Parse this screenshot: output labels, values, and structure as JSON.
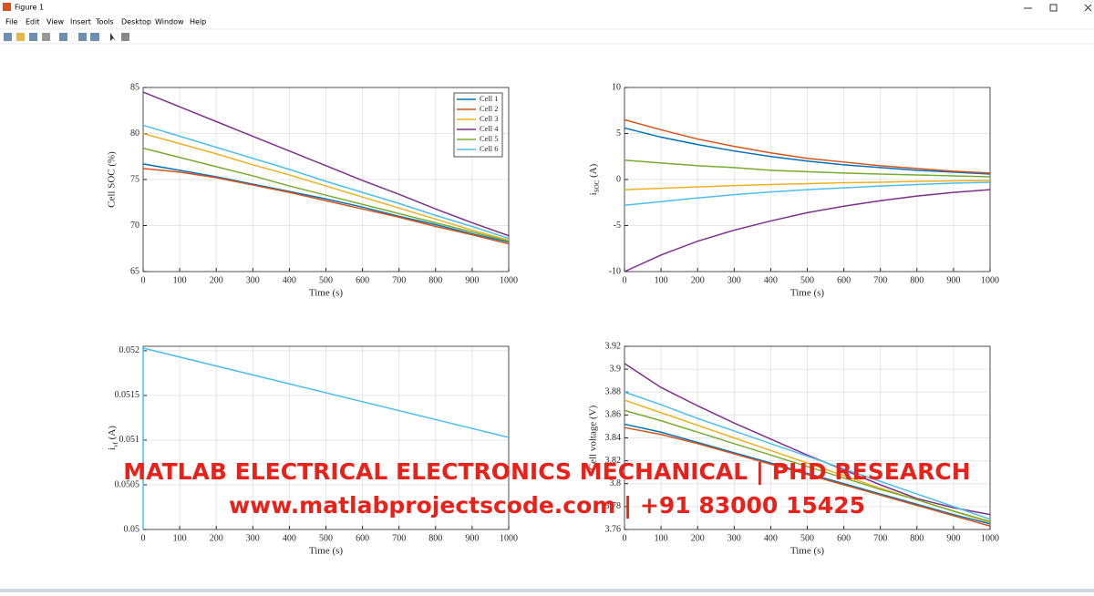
{
  "window": {
    "title": "Figure 1",
    "menu": [
      "File",
      "Edit",
      "View",
      "Insert",
      "Tools",
      "Desktop",
      "Window",
      "Help"
    ]
  },
  "chart_data": [
    {
      "type": "line",
      "x": [
        0,
        100,
        200,
        300,
        400,
        500,
        600,
        700,
        800,
        900,
        1000
      ],
      "xlim": [
        0,
        1000
      ],
      "xticks": [
        0,
        100,
        200,
        300,
        400,
        500,
        600,
        700,
        800,
        900,
        1000
      ],
      "ylim": [
        65,
        85
      ],
      "yticks": [
        65,
        70,
        75,
        80,
        85
      ],
      "xlabel": "Time (s)",
      "ylabel": "Cell SOC (%)",
      "grid": true,
      "legend": "top-right",
      "series": [
        {
          "name": "Cell 1",
          "color": "#0072BD",
          "values": [
            76.7,
            76.0,
            75.3,
            74.5,
            73.7,
            72.9,
            72.0,
            71.0,
            70.1,
            69.1,
            68.2
          ]
        },
        {
          "name": "Cell 2",
          "color": "#D95319",
          "values": [
            76.2,
            75.8,
            75.2,
            74.4,
            73.6,
            72.7,
            71.8,
            70.9,
            69.9,
            69.0,
            68.0
          ]
        },
        {
          "name": "Cell 3",
          "color": "#EDB120",
          "values": [
            80.0,
            78.9,
            77.8,
            76.6,
            75.5,
            74.3,
            73.1,
            71.9,
            70.7,
            69.5,
            68.4
          ]
        },
        {
          "name": "Cell 4",
          "color": "#7E2F8E",
          "values": [
            84.5,
            82.9,
            81.3,
            79.7,
            78.1,
            76.5,
            74.9,
            73.4,
            71.8,
            70.3,
            68.9
          ]
        },
        {
          "name": "Cell 5",
          "color": "#77AC30",
          "values": [
            78.4,
            77.4,
            76.4,
            75.4,
            74.3,
            73.3,
            72.3,
            71.3,
            70.3,
            69.3,
            68.3
          ]
        },
        {
          "name": "Cell 6",
          "color": "#4DBEEE",
          "values": [
            80.9,
            79.7,
            78.5,
            77.3,
            76.1,
            74.8,
            73.6,
            72.4,
            71.1,
            69.9,
            68.6
          ]
        }
      ]
    },
    {
      "type": "line",
      "x": [
        0,
        100,
        200,
        300,
        400,
        500,
        600,
        700,
        800,
        900,
        1000
      ],
      "xlim": [
        0,
        1000
      ],
      "xticks": [
        0,
        100,
        200,
        300,
        400,
        500,
        600,
        700,
        800,
        900,
        1000
      ],
      "ylim": [
        -10,
        10
      ],
      "yticks": [
        -10,
        -5,
        0,
        5,
        10
      ],
      "xlabel": "Time (s)",
      "ylabel": [
        "i",
        "SOC",
        " (A)"
      ],
      "grid": true,
      "series": [
        {
          "color": "#0072BD",
          "values": [
            5.6,
            4.6,
            3.8,
            3.1,
            2.5,
            2.0,
            1.6,
            1.3,
            1.0,
            0.8,
            0.6
          ]
        },
        {
          "color": "#D95319",
          "values": [
            6.5,
            5.4,
            4.4,
            3.6,
            2.9,
            2.3,
            1.9,
            1.5,
            1.2,
            0.9,
            0.7
          ]
        },
        {
          "color": "#EDB120",
          "values": [
            -1.1,
            -0.95,
            -0.8,
            -0.65,
            -0.55,
            -0.45,
            -0.35,
            -0.3,
            -0.2,
            -0.15,
            -0.1
          ]
        },
        {
          "color": "#7E2F8E",
          "values": [
            -10,
            -8.2,
            -6.7,
            -5.5,
            -4.5,
            -3.6,
            -2.9,
            -2.3,
            -1.8,
            -1.4,
            -1.1
          ]
        },
        {
          "color": "#77AC30",
          "values": [
            2.1,
            1.8,
            1.5,
            1.3,
            1.0,
            0.85,
            0.7,
            0.6,
            0.5,
            0.4,
            0.3
          ]
        },
        {
          "color": "#4DBEEE",
          "values": [
            -2.8,
            -2.4,
            -2.0,
            -1.65,
            -1.35,
            -1.1,
            -0.9,
            -0.7,
            -0.55,
            -0.4,
            -0.3
          ]
        }
      ]
    },
    {
      "type": "line",
      "x": [
        0,
        0,
        1000
      ],
      "xlim": [
        0,
        1000
      ],
      "xticks": [
        0,
        100,
        200,
        300,
        400,
        500,
        600,
        700,
        800,
        900,
        1000
      ],
      "ylim": [
        0.05,
        0.05205
      ],
      "yticks": [
        0.05,
        0.0505,
        0.051,
        0.0515,
        0.052
      ],
      "xlabel": "Time (s)",
      "ylabel": [
        "i",
        "vf",
        " (A)"
      ],
      "grid": true,
      "series": [
        {
          "color": "#4DBEEE",
          "values": [
            0.05,
            0.05203,
            0.05103
          ]
        }
      ]
    },
    {
      "type": "line",
      "x": [
        0,
        100,
        200,
        300,
        400,
        500,
        600,
        700,
        800,
        900,
        1000
      ],
      "xlim": [
        0,
        1000
      ],
      "xticks": [
        0,
        100,
        200,
        300,
        400,
        500,
        600,
        700,
        800,
        900,
        1000
      ],
      "ylim": [
        3.76,
        3.92
      ],
      "yticks": [
        3.76,
        3.78,
        3.8,
        3.82,
        3.84,
        3.86,
        3.88,
        3.9,
        3.92
      ],
      "xlabel": "Time (s)",
      "ylabel": "Cell voltage (V)",
      "grid": true,
      "series": [
        {
          "color": "#0072BD",
          "values": [
            3.852,
            3.845,
            3.836,
            3.827,
            3.818,
            3.809,
            3.8,
            3.791,
            3.782,
            3.773,
            3.765
          ]
        },
        {
          "color": "#D95319",
          "values": [
            3.849,
            3.843,
            3.835,
            3.826,
            3.817,
            3.808,
            3.799,
            3.79,
            3.781,
            3.772,
            3.763
          ]
        },
        {
          "color": "#EDB120",
          "values": [
            3.873,
            3.862,
            3.851,
            3.84,
            3.829,
            3.818,
            3.807,
            3.796,
            3.786,
            3.776,
            3.766
          ]
        },
        {
          "color": "#7E2F8E",
          "values": [
            3.905,
            3.884,
            3.868,
            3.853,
            3.839,
            3.825,
            3.812,
            3.799,
            3.787,
            3.779,
            3.773
          ]
        },
        {
          "color": "#77AC30",
          "values": [
            3.864,
            3.855,
            3.845,
            3.835,
            3.825,
            3.815,
            3.805,
            3.795,
            3.786,
            3.776,
            3.767
          ]
        },
        {
          "color": "#4DBEEE",
          "values": [
            3.88,
            3.869,
            3.857,
            3.846,
            3.835,
            3.824,
            3.813,
            3.802,
            3.791,
            3.78,
            3.769
          ]
        }
      ]
    }
  ],
  "watermark": {
    "line1": "MATLAB ELECTRICAL ELECTRONICS MECHANICAL | PHD RESEARCH",
    "line2": "www.matlabprojectscode.com | +91 83000 15425"
  }
}
